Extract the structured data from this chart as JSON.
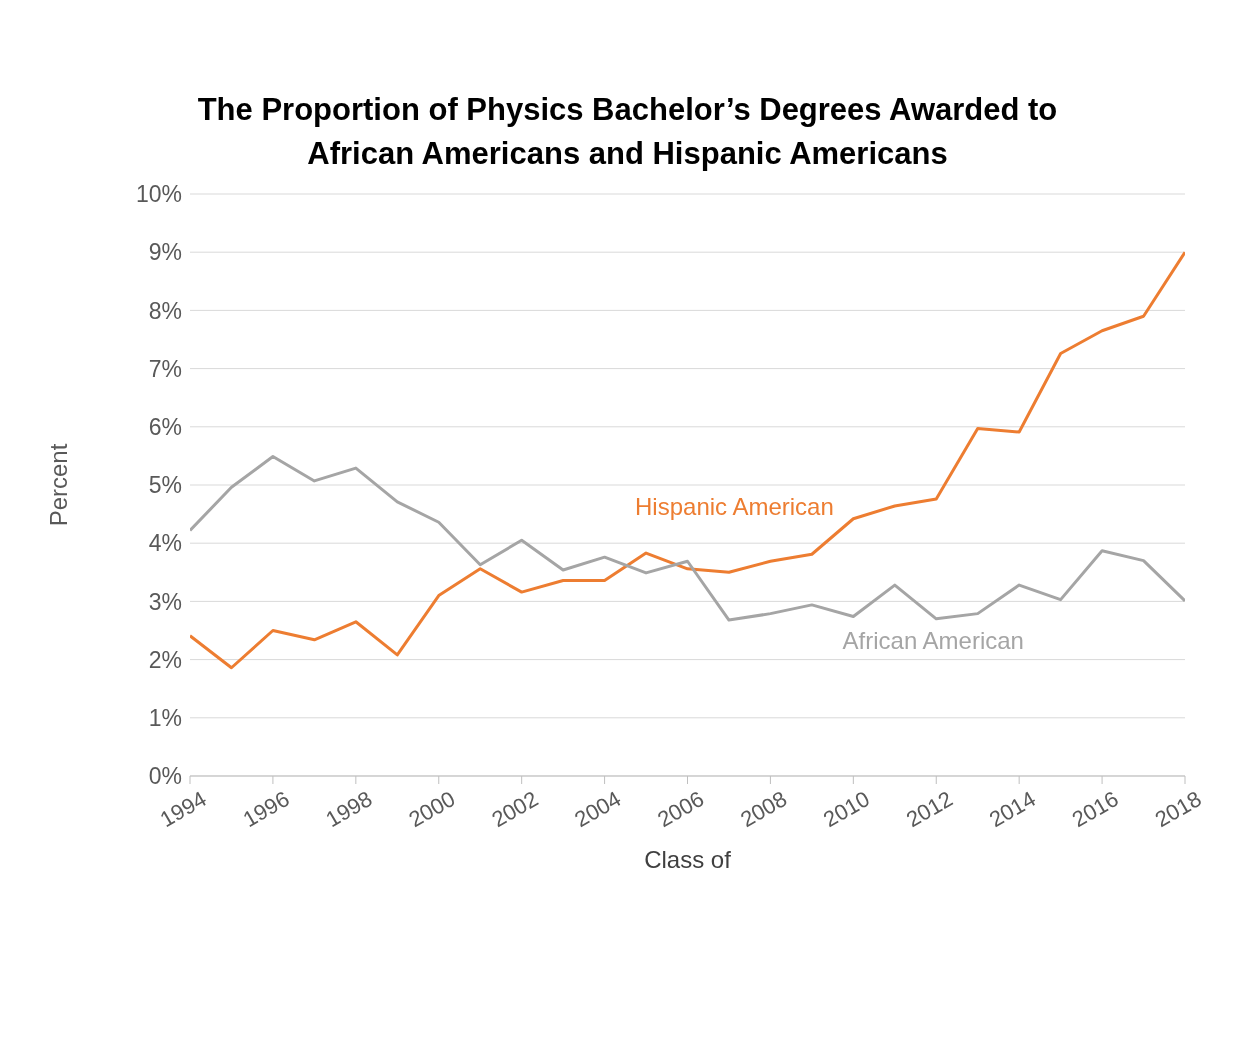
{
  "chart_data": {
    "type": "line",
    "title": "The Proportion of Physics Bachelor’s Degrees Awarded to\nAfrican Americans and Hispanic Americans",
    "xlabel": "Class of",
    "ylabel": "Percent",
    "x": [
      1994,
      1995,
      1996,
      1997,
      1998,
      1999,
      2000,
      2001,
      2002,
      2003,
      2004,
      2005,
      2006,
      2007,
      2008,
      2009,
      2010,
      2011,
      2012,
      2013,
      2014,
      2015,
      2016,
      2017,
      2018
    ],
    "series": [
      {
        "name": "Hispanic American",
        "color": "#ed7d31",
        "values": [
          2.41,
          1.86,
          2.5,
          2.34,
          2.65,
          2.08,
          3.1,
          3.56,
          3.16,
          3.36,
          3.36,
          3.83,
          3.56,
          3.5,
          3.69,
          3.81,
          4.42,
          4.64,
          4.76,
          5.97,
          5.91,
          7.26,
          7.65,
          7.9,
          9.0
        ]
      },
      {
        "name": "African American",
        "color": "#a5a5a5",
        "values": [
          4.22,
          4.96,
          5.49,
          5.07,
          5.29,
          4.71,
          4.36,
          3.63,
          4.05,
          3.54,
          3.76,
          3.49,
          3.69,
          2.68,
          2.79,
          2.94,
          2.74,
          3.28,
          2.7,
          2.79,
          3.28,
          3.03,
          3.87,
          3.7,
          3.01
        ]
      }
    ],
    "xlim": [
      1994,
      2018
    ],
    "xticks": [
      1994,
      1996,
      1998,
      2000,
      2002,
      2004,
      2006,
      2008,
      2010,
      2012,
      2014,
      2016,
      2018
    ],
    "ylim": [
      0,
      10
    ],
    "yticks": [
      {
        "value": 0,
        "label": "0%"
      },
      {
        "value": 1,
        "label": "1%"
      },
      {
        "value": 2,
        "label": "2%"
      },
      {
        "value": 3,
        "label": "3%"
      },
      {
        "value": 4,
        "label": "4%"
      },
      {
        "value": 5,
        "label": "5%"
      },
      {
        "value": 6,
        "label": "6%"
      },
      {
        "value": 7,
        "label": "7%"
      },
      {
        "value": 8,
        "label": "8%"
      },
      {
        "value": 9,
        "label": "9%"
      },
      {
        "value": 10,
        "label": "10%"
      }
    ],
    "grid": "y",
    "legend": false,
    "marker": "none",
    "line_style": "solid"
  }
}
